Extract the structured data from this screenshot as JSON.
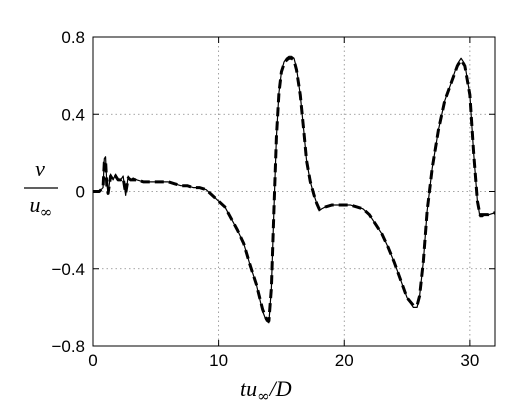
{
  "chart_data": {
    "type": "line",
    "title": "",
    "xlabel": {
      "prefix": "tu",
      "sub": "∞",
      "suffix": "/D"
    },
    "ylabel": {
      "numerator": "v",
      "denominator": "u",
      "sub": "∞"
    },
    "xlim": [
      0,
      32
    ],
    "ylim": [
      -0.8,
      0.8
    ],
    "xticks": [
      0,
      10,
      20,
      30
    ],
    "xtick_labels": [
      "0",
      "10",
      "20",
      "30"
    ],
    "yticks": [
      -0.8,
      -0.4,
      0,
      0.4,
      0.8
    ],
    "ytick_labels": [
      "−0.8",
      "−0.4",
      "0",
      "0.4",
      "0.8"
    ],
    "grid": true,
    "series": [
      {
        "style": "solid",
        "x": [
          0,
          0.5,
          0.8,
          0.9,
          1.0,
          1.1,
          1.2,
          1.4,
          1.6,
          1.8,
          2.0,
          2.2,
          2.4,
          2.6,
          2.8,
          3.0,
          3.2,
          3.5,
          4.0,
          4.5,
          5.0,
          5.5,
          6.0,
          6.5,
          7.0,
          7.5,
          8.0,
          8.5,
          9.0,
          9.5,
          10.0,
          10.5,
          11.0,
          11.5,
          12.0,
          12.5,
          13.0,
          13.5,
          13.8,
          14.0,
          14.2,
          14.4,
          14.6,
          14.8,
          15.0,
          15.2,
          15.4,
          15.6,
          15.8,
          16.0,
          16.2,
          16.5,
          16.8,
          17.0,
          17.3,
          17.6,
          17.8,
          18.0,
          18.2,
          18.5,
          19.0,
          19.5,
          20.0,
          20.5,
          21.0,
          21.5,
          22.0,
          22.5,
          23.0,
          23.5,
          24.0,
          24.5,
          25.0,
          25.5,
          25.8,
          26.0,
          26.3,
          26.6,
          27.0,
          27.5,
          28.0,
          28.5,
          29.0,
          29.3,
          29.6,
          30.0,
          30.3,
          30.6,
          30.8,
          31.0,
          31.2,
          31.5,
          32.0
        ],
        "y": [
          0.0,
          0.0,
          0.02,
          0.17,
          0.18,
          0.04,
          -0.01,
          0.09,
          0.06,
          0.09,
          0.06,
          0.06,
          0.08,
          -0.02,
          0.08,
          0.06,
          0.07,
          0.06,
          0.05,
          0.05,
          0.05,
          0.05,
          0.05,
          0.04,
          0.03,
          0.03,
          0.02,
          0.02,
          0.01,
          -0.02,
          -0.05,
          -0.08,
          -0.14,
          -0.2,
          -0.27,
          -0.38,
          -0.48,
          -0.62,
          -0.67,
          -0.68,
          -0.5,
          -0.1,
          0.28,
          0.51,
          0.62,
          0.67,
          0.69,
          0.7,
          0.7,
          0.69,
          0.64,
          0.5,
          0.3,
          0.16,
          0.05,
          -0.02,
          -0.06,
          -0.1,
          -0.09,
          -0.08,
          -0.07,
          -0.07,
          -0.07,
          -0.07,
          -0.08,
          -0.09,
          -0.12,
          -0.17,
          -0.22,
          -0.29,
          -0.37,
          -0.46,
          -0.55,
          -0.6,
          -0.6,
          -0.54,
          -0.36,
          -0.1,
          0.12,
          0.32,
          0.47,
          0.56,
          0.66,
          0.69,
          0.66,
          0.5,
          0.2,
          -0.05,
          -0.13,
          -0.13,
          -0.12,
          -0.12,
          -0.11
        ]
      },
      {
        "style": "dashed",
        "x": [
          0,
          0.5,
          0.8,
          0.9,
          1.0,
          1.1,
          1.2,
          1.4,
          1.6,
          1.8,
          2.0,
          2.2,
          2.4,
          2.6,
          2.8,
          3.0,
          3.2,
          3.5,
          4.0,
          4.5,
          5.0,
          5.5,
          6.0,
          6.5,
          7.0,
          7.5,
          8.0,
          8.5,
          9.0,
          9.5,
          10.0,
          10.5,
          11.0,
          11.5,
          12.0,
          12.5,
          13.0,
          13.5,
          13.8,
          14.0,
          14.2,
          14.4,
          14.6,
          14.8,
          15.0,
          15.2,
          15.4,
          15.6,
          15.8,
          16.0,
          16.2,
          16.5,
          16.8,
          17.0,
          17.3,
          17.6,
          17.8,
          18.0,
          18.2,
          18.5,
          19.0,
          19.5,
          20.0,
          20.5,
          21.0,
          21.5,
          22.0,
          22.5,
          23.0,
          23.5,
          24.0,
          24.5,
          25.0,
          25.5,
          25.8,
          26.0,
          26.3,
          26.6,
          27.0,
          27.5,
          28.0,
          28.5,
          29.0,
          29.3,
          29.6,
          30.0,
          30.3,
          30.6,
          30.8,
          31.0,
          31.2,
          31.5,
          32.0
        ],
        "y": [
          0.0,
          0.0,
          0.02,
          0.15,
          0.16,
          0.03,
          -0.01,
          0.08,
          0.06,
          0.08,
          0.06,
          0.06,
          0.07,
          -0.01,
          0.07,
          0.06,
          0.06,
          0.06,
          0.05,
          0.05,
          0.05,
          0.05,
          0.05,
          0.04,
          0.03,
          0.03,
          0.02,
          0.02,
          0.01,
          -0.02,
          -0.05,
          -0.08,
          -0.14,
          -0.2,
          -0.27,
          -0.38,
          -0.48,
          -0.61,
          -0.66,
          -0.67,
          -0.5,
          -0.1,
          0.28,
          0.51,
          0.62,
          0.66,
          0.68,
          0.69,
          0.69,
          0.68,
          0.63,
          0.5,
          0.3,
          0.16,
          0.05,
          -0.02,
          -0.06,
          -0.09,
          -0.09,
          -0.08,
          -0.07,
          -0.07,
          -0.07,
          -0.07,
          -0.08,
          -0.09,
          -0.12,
          -0.17,
          -0.22,
          -0.29,
          -0.37,
          -0.46,
          -0.55,
          -0.59,
          -0.59,
          -0.54,
          -0.36,
          -0.1,
          0.12,
          0.32,
          0.47,
          0.56,
          0.65,
          0.68,
          0.65,
          0.5,
          0.2,
          -0.05,
          -0.12,
          -0.12,
          -0.12,
          -0.12,
          -0.11
        ]
      }
    ]
  }
}
